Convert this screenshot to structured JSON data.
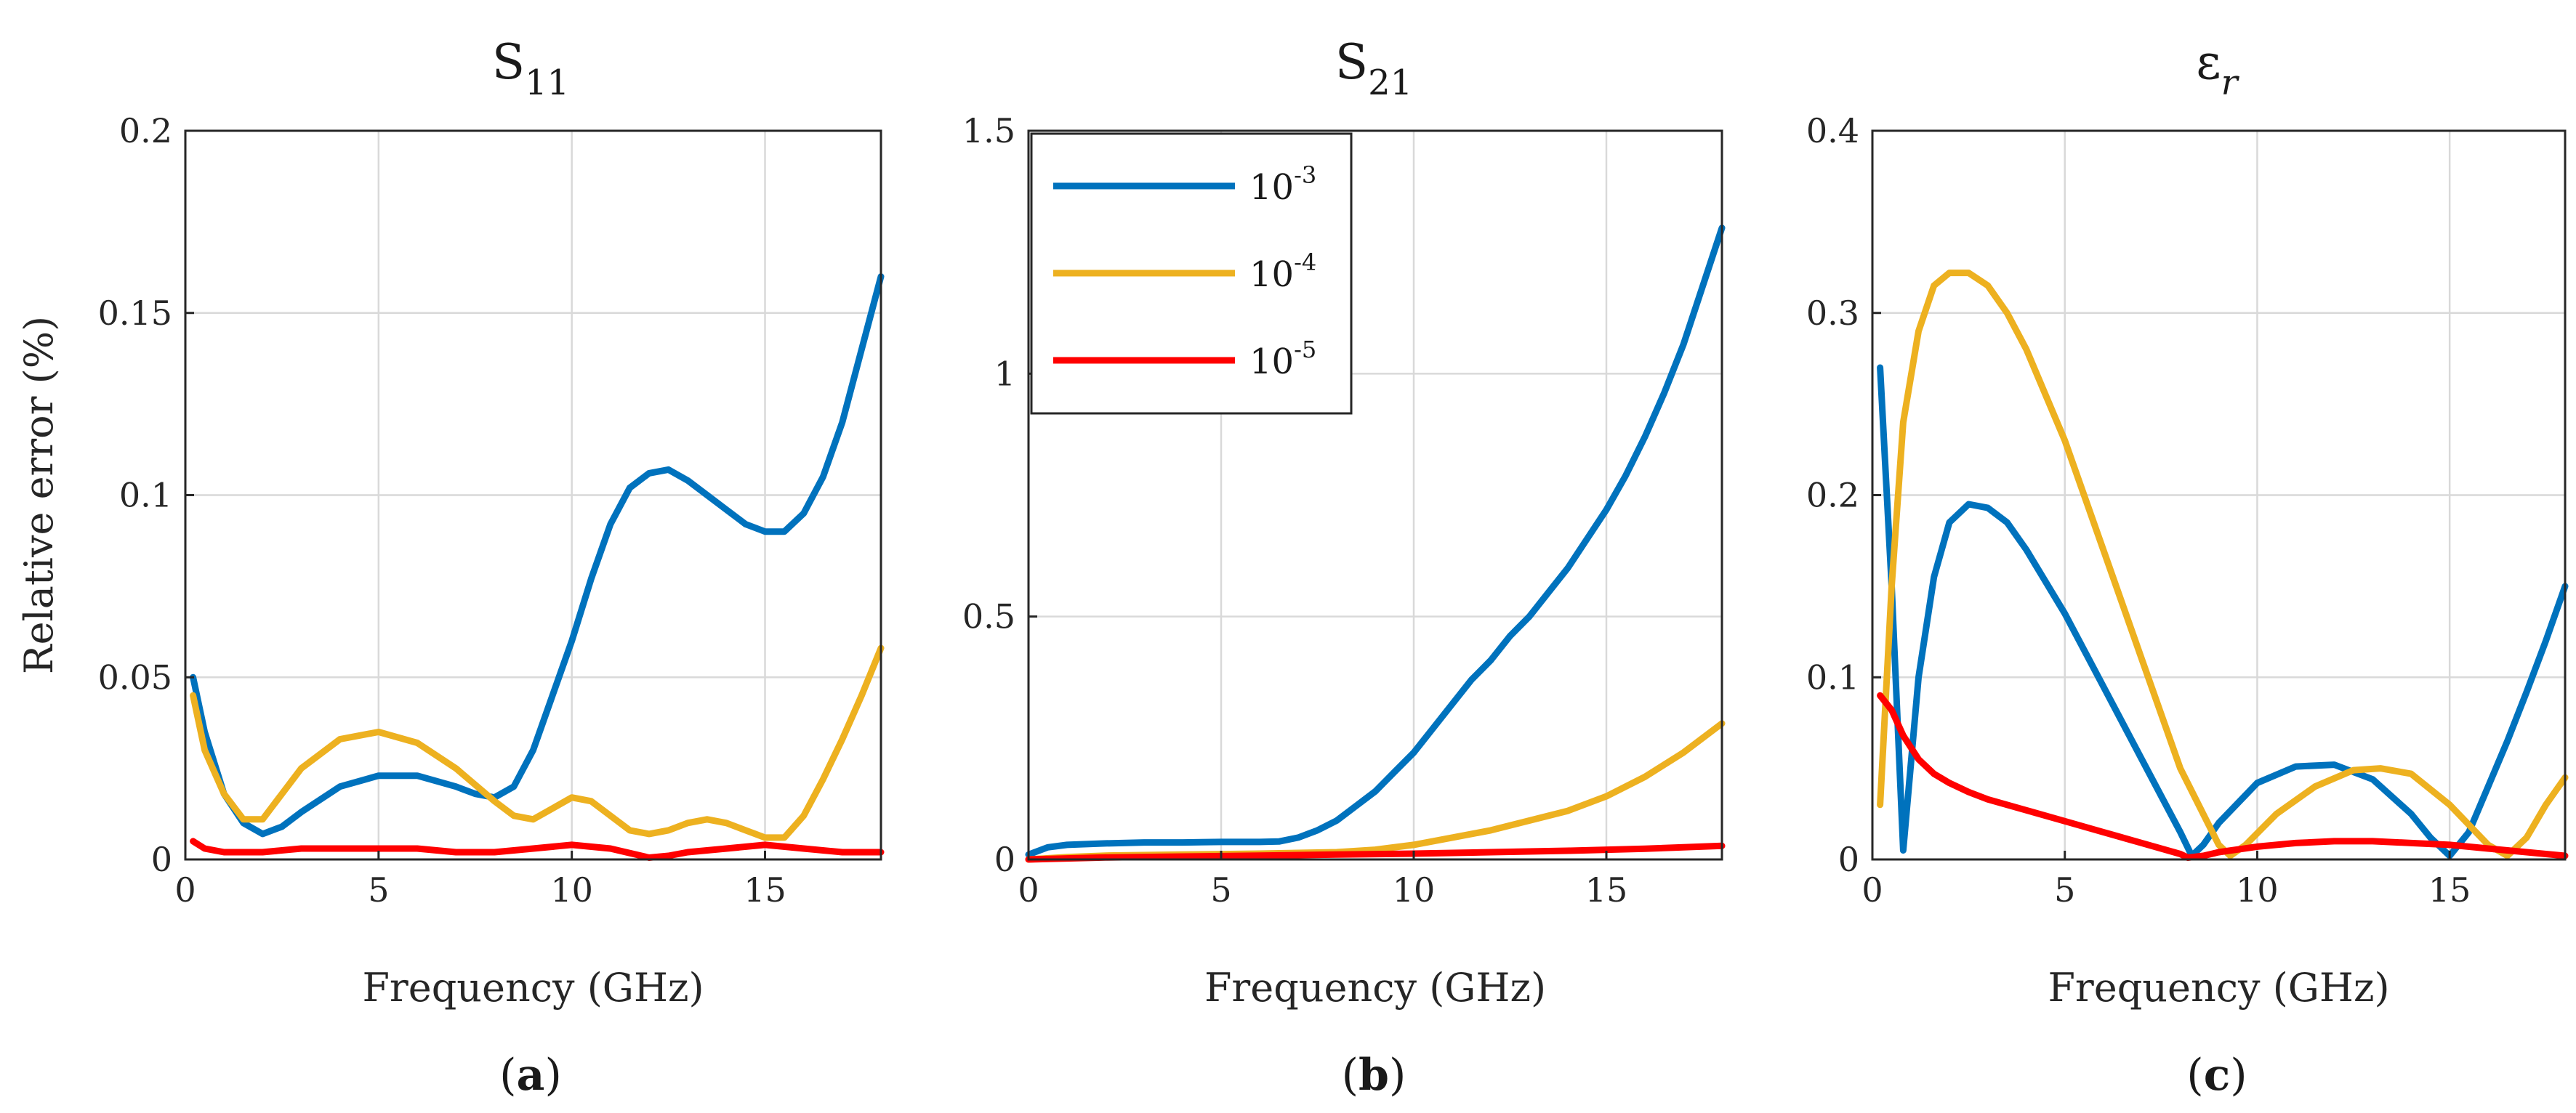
{
  "chart_data": [
    {
      "type": "line",
      "panel": "a",
      "title": "S",
      "title_subscript": "11",
      "xlabel": "Frequency (GHz)",
      "ylabel": "Relative error (%)",
      "xlim": [
        0,
        18
      ],
      "ylim": [
        0,
        0.2
      ],
      "xticks": [
        0,
        5,
        10,
        15
      ],
      "xtick_labels": [
        "0",
        "5",
        "10",
        "15"
      ],
      "yticks": [
        0,
        0.05,
        0.1,
        0.15,
        0.2
      ],
      "ytick_labels": [
        "0",
        "0.05",
        "0.1",
        "0.15",
        "0.2"
      ],
      "grid": true,
      "caption_open": "(",
      "caption_letter": "a",
      "caption_close": ")",
      "series": [
        {
          "color": "#0072BD",
          "x": [
            0.2,
            0.5,
            1,
            1.5,
            2,
            2.5,
            3,
            4,
            5,
            6,
            7,
            7.5,
            8,
            8.5,
            9,
            9.5,
            10,
            10.5,
            11,
            11.5,
            12,
            12.5,
            13,
            13.5,
            14,
            14.5,
            15,
            15.5,
            16,
            16.5,
            17,
            17.5,
            18
          ],
          "y": [
            0.05,
            0.035,
            0.018,
            0.01,
            0.007,
            0.009,
            0.013,
            0.02,
            0.023,
            0.023,
            0.02,
            0.018,
            0.017,
            0.02,
            0.03,
            0.045,
            0.06,
            0.077,
            0.092,
            0.102,
            0.106,
            0.107,
            0.104,
            0.1,
            0.096,
            0.092,
            0.09,
            0.09,
            0.095,
            0.105,
            0.12,
            0.14,
            0.16
          ]
        },
        {
          "color": "#EDB120",
          "x": [
            0.2,
            0.5,
            1,
            1.5,
            2,
            3,
            4,
            5,
            6,
            7,
            8,
            8.5,
            9,
            9.5,
            10,
            10.5,
            11,
            11.5,
            12,
            12.5,
            13,
            13.5,
            14,
            14.5,
            15,
            15.5,
            16,
            16.5,
            17,
            17.5,
            18
          ],
          "y": [
            0.045,
            0.03,
            0.018,
            0.011,
            0.011,
            0.025,
            0.033,
            0.035,
            0.032,
            0.025,
            0.016,
            0.012,
            0.011,
            0.014,
            0.017,
            0.016,
            0.012,
            0.008,
            0.007,
            0.008,
            0.01,
            0.011,
            0.01,
            0.008,
            0.006,
            0.006,
            0.012,
            0.022,
            0.033,
            0.045,
            0.058
          ]
        },
        {
          "color": "#FF0000",
          "x": [
            0.2,
            0.5,
            1,
            2,
            3,
            4,
            5,
            6,
            7,
            8,
            9,
            10,
            11,
            12,
            12.5,
            13,
            14,
            15,
            16,
            17,
            18
          ],
          "y": [
            0.005,
            0.003,
            0.002,
            0.002,
            0.003,
            0.003,
            0.003,
            0.003,
            0.002,
            0.002,
            0.003,
            0.004,
            0.003,
            0.0005,
            0.001,
            0.002,
            0.003,
            0.004,
            0.003,
            0.002,
            0.002
          ]
        }
      ]
    },
    {
      "type": "line",
      "panel": "b",
      "title": "S",
      "title_subscript": "21",
      "xlabel": "Frequency (GHz)",
      "ylabel": "",
      "xlim": [
        0,
        18
      ],
      "ylim": [
        0,
        1.5
      ],
      "xticks": [
        0,
        5,
        10,
        15
      ],
      "xtick_labels": [
        "0",
        "5",
        "10",
        "15"
      ],
      "yticks": [
        0,
        0.5,
        1,
        1.5
      ],
      "ytick_labels": [
        "0",
        "0.5",
        "1",
        "1.5"
      ],
      "grid": true,
      "legend_position": "top-left",
      "caption_open": "(",
      "caption_letter": "b",
      "caption_close": ")",
      "series": [
        {
          "name_base": "10",
          "name_exp": "-3",
          "color": "#0072BD",
          "x": [
            0,
            0.5,
            1,
            2,
            3,
            4,
            5,
            6,
            6.5,
            7,
            7.5,
            8,
            8.5,
            9,
            9.5,
            10,
            10.5,
            11,
            11.5,
            12,
            12.5,
            13,
            13.5,
            14,
            14.5,
            15,
            15.5,
            16,
            16.5,
            17,
            17.5,
            18
          ],
          "y": [
            0.01,
            0.025,
            0.03,
            0.033,
            0.035,
            0.035,
            0.036,
            0.036,
            0.037,
            0.045,
            0.06,
            0.08,
            0.11,
            0.14,
            0.18,
            0.22,
            0.27,
            0.32,
            0.37,
            0.41,
            0.46,
            0.5,
            0.55,
            0.6,
            0.66,
            0.72,
            0.79,
            0.87,
            0.96,
            1.06,
            1.18,
            1.3
          ]
        },
        {
          "name_base": "10",
          "name_exp": "-4",
          "color": "#EDB120",
          "x": [
            0,
            1,
            2,
            4,
            6,
            8,
            9,
            10,
            11,
            12,
            13,
            14,
            15,
            16,
            17,
            18
          ],
          "y": [
            0,
            0.005,
            0.008,
            0.01,
            0.012,
            0.015,
            0.02,
            0.03,
            0.045,
            0.06,
            0.08,
            0.1,
            0.13,
            0.17,
            0.22,
            0.28
          ]
        },
        {
          "name_base": "10",
          "name_exp": "-5",
          "color": "#FF0000",
          "x": [
            0,
            2,
            4,
            6,
            8,
            10,
            12,
            14,
            16,
            18
          ],
          "y": [
            0,
            0.004,
            0.006,
            0.008,
            0.01,
            0.012,
            0.015,
            0.018,
            0.022,
            0.028
          ]
        }
      ]
    },
    {
      "type": "line",
      "panel": "c",
      "title": "ε",
      "title_subscript": "r",
      "xlabel": "Frequency (GHz)",
      "ylabel": "",
      "xlim": [
        0,
        18
      ],
      "ylim": [
        0,
        0.4
      ],
      "xticks": [
        0,
        5,
        10,
        15
      ],
      "xtick_labels": [
        "0",
        "5",
        "10",
        "15"
      ],
      "yticks": [
        0,
        0.1,
        0.2,
        0.3,
        0.4
      ],
      "ytick_labels": [
        "0",
        "0.1",
        "0.2",
        "0.3",
        "0.4"
      ],
      "grid": true,
      "caption_open": "(",
      "caption_letter": "c",
      "caption_close": ")",
      "series": [
        {
          "color": "#0072BD",
          "x": [
            0.2,
            0.5,
            0.8,
            1.2,
            1.6,
            2,
            2.5,
            3,
            3.5,
            4,
            5,
            6,
            7,
            8,
            8.3,
            8.6,
            9,
            10,
            11,
            12,
            13,
            14,
            14.5,
            15,
            15.5,
            16,
            16.5,
            17,
            17.5,
            18
          ],
          "y": [
            0.27,
            0.15,
            0.005,
            0.1,
            0.155,
            0.185,
            0.195,
            0.193,
            0.185,
            0.17,
            0.135,
            0.095,
            0.055,
            0.015,
            0.002,
            0.008,
            0.02,
            0.042,
            0.051,
            0.052,
            0.044,
            0.025,
            0.012,
            0.002,
            0.015,
            0.04,
            0.065,
            0.092,
            0.12,
            0.15
          ]
        },
        {
          "color": "#EDB120",
          "x": [
            0.2,
            0.5,
            0.8,
            1.2,
            1.6,
            2,
            2.5,
            3,
            3.5,
            4,
            5,
            6,
            7,
            8,
            9,
            9.3,
            9.7,
            10.5,
            11.5,
            12.5,
            13.2,
            14,
            15,
            16,
            16.5,
            17,
            17.5,
            18
          ],
          "y": [
            0.03,
            0.15,
            0.24,
            0.29,
            0.315,
            0.322,
            0.322,
            0.315,
            0.3,
            0.28,
            0.23,
            0.17,
            0.11,
            0.05,
            0.008,
            0.002,
            0.008,
            0.025,
            0.04,
            0.049,
            0.05,
            0.047,
            0.03,
            0.008,
            0.002,
            0.012,
            0.03,
            0.045
          ]
        },
        {
          "color": "#FF0000",
          "x": [
            0.2,
            0.5,
            0.8,
            1.2,
            1.6,
            2,
            2.5,
            3,
            4,
            5,
            6,
            7,
            8,
            8.2,
            8.6,
            9,
            10,
            11,
            12,
            13,
            14,
            15,
            16,
            17,
            18
          ],
          "y": [
            0.09,
            0.082,
            0.068,
            0.055,
            0.047,
            0.042,
            0.037,
            0.033,
            0.027,
            0.021,
            0.015,
            0.009,
            0.003,
            0.001,
            0.002,
            0.004,
            0.007,
            0.009,
            0.01,
            0.01,
            0.009,
            0.008,
            0.006,
            0.004,
            0.002
          ]
        }
      ]
    }
  ]
}
